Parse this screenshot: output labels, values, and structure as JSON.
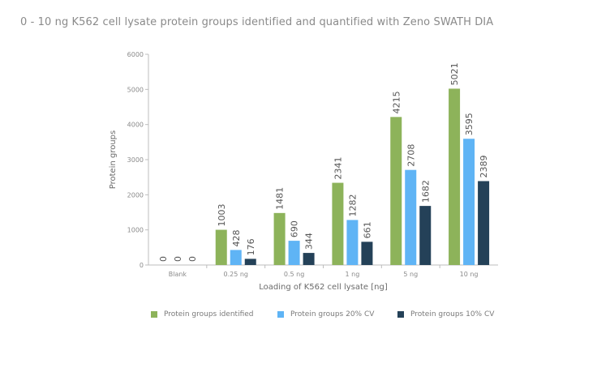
{
  "title": "0 - 10 ng K562 cell lysate protein groups identified and quantified with Zeno SWATH DIA",
  "colors": {
    "identified": "#8db35a",
    "cv20": "#5fb4f5",
    "cv10": "#244158",
    "axis": "#bdbdbd"
  },
  "chart_data": {
    "type": "bar",
    "title": "0 - 10 ng K562 cell lysate protein groups identified and quantified with Zeno SWATH DIA",
    "xlabel": "Loading of K562 cell lysate [ng]",
    "ylabel": "Protein groups",
    "ylim": [
      0,
      6000
    ],
    "yticks": [
      "0",
      "1000",
      "2000",
      "3000",
      "4000",
      "5000",
      "6000"
    ],
    "categories": [
      "Blank",
      "0.25 ng",
      "0.5 ng",
      "1 ng",
      "5 ng",
      "10 ng"
    ],
    "grid": false,
    "legend_position": "bottom",
    "series": [
      {
        "name": "Protein groups identified",
        "values": [
          0,
          1003,
          1481,
          2341,
          4215,
          5021
        ]
      },
      {
        "name": "Protein groups 20% CV",
        "values": [
          0,
          428,
          690,
          1282,
          2708,
          3595
        ]
      },
      {
        "name": "Protein groups 10% CV",
        "values": [
          0,
          176,
          344,
          661,
          1682,
          2389
        ]
      }
    ]
  }
}
